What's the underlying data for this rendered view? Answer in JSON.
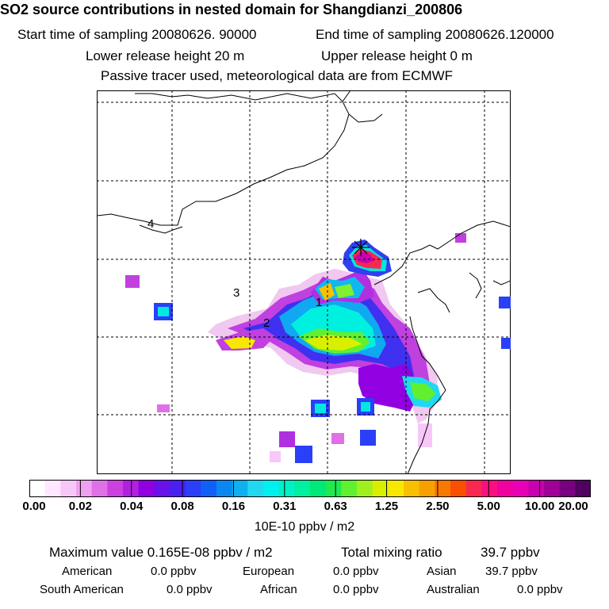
{
  "header": {
    "title": "SO2 source contributions in nested domain for Shangdianzi_200806",
    "start_time": "Start time of sampling 20080626. 90000",
    "end_time": "End time of sampling 20080626.120000",
    "lower_height": "Lower release height   20 m",
    "upper_height": "Upper release height    0 m",
    "note": "Passive tracer used, meteorological data are from ECMWF"
  },
  "map": {
    "region_labels": [
      "1",
      "2",
      "3",
      "4"
    ],
    "receptor_marker": "star-icon"
  },
  "legend": {
    "ticks": [
      "0.00",
      "0.02",
      "0.04",
      "0.08",
      "0.16",
      "0.31",
      "0.63",
      "1.25",
      "2.50",
      "5.00",
      "10.00",
      "20.00"
    ],
    "units": "10E-10 ppbv / m2",
    "colors": [
      "#ffffff",
      "#ffe8ff",
      "#f7c8f7",
      "#f0a0f0",
      "#e070e8",
      "#cc40e0",
      "#b020e0",
      "#9000e0",
      "#6a10e8",
      "#4a20f0",
      "#2a40f8",
      "#1060f8",
      "#0a88f0",
      "#10b0f0",
      "#20d8f0",
      "#00f0f0",
      "#00f0c8",
      "#00f0a0",
      "#00e878",
      "#20e850",
      "#60f030",
      "#a0f020",
      "#d8f000",
      "#f8e800",
      "#f8c000",
      "#f8a000",
      "#f87800",
      "#f85000",
      "#f82850",
      "#f81080",
      "#f000a0",
      "#e800b8",
      "#c800b0",
      "#a00098",
      "#780080",
      "#500060"
    ]
  },
  "stats": {
    "max_value": "Maximum value  0.165E-08 ppbv / m2",
    "total": "Total mixing ratio",
    "total_value": "39.7 ppbv",
    "american": "American",
    "american_v": "0.0 ppbv",
    "european": "European",
    "european_v": "0.0 ppbv",
    "asian": "Asian",
    "asian_v": "39.7 ppbv",
    "south_american": "South American",
    "south_american_v": "0.0 ppbv",
    "african": "African",
    "african_v": "0.0 ppbv",
    "australian": "Australian",
    "australian_v": "0.0 ppbv"
  }
}
